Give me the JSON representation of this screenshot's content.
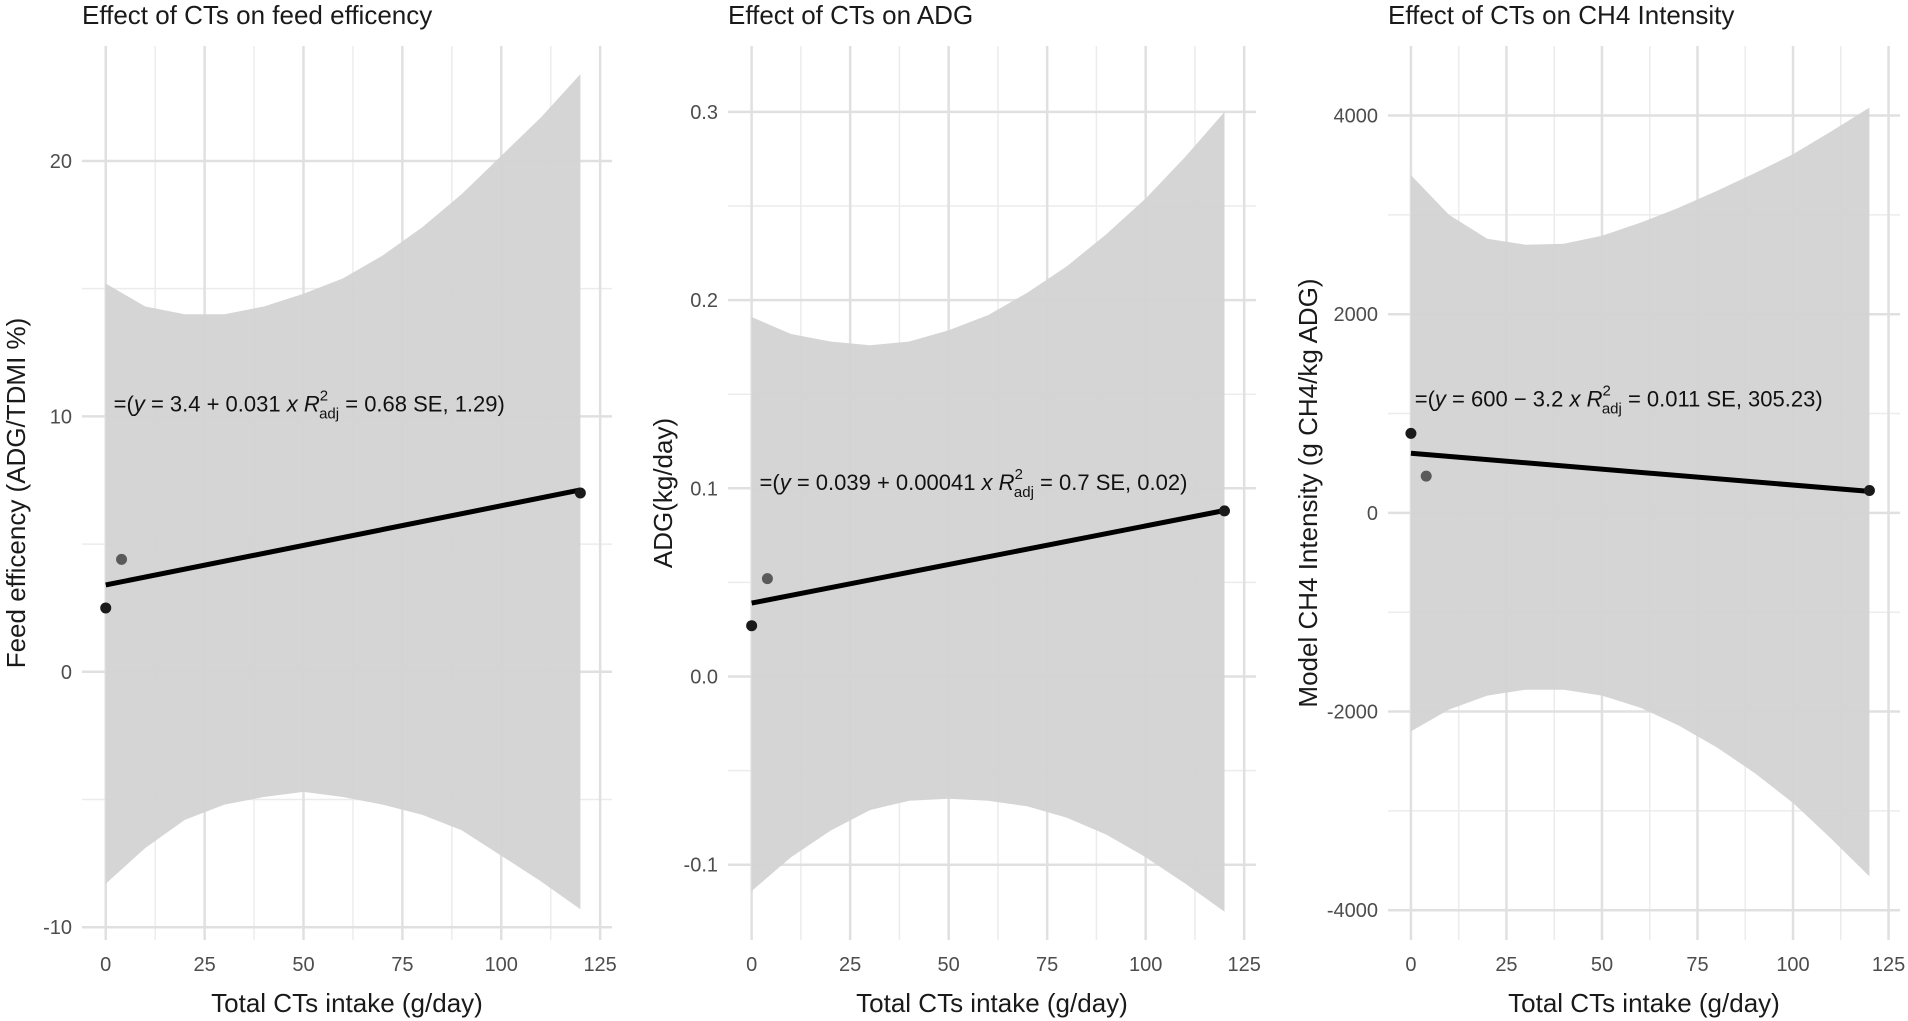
{
  "chart_data": [
    {
      "type": "scatter",
      "title": "Effect of CTs on feed efficency",
      "xlabel": "Total CTs intake (g/day)",
      "ylabel": "Feed efficency (ADG/TDMI %)",
      "xlim": [
        -6,
        128
      ],
      "ylim": [
        -10.5,
        24.5
      ],
      "x_ticks": [
        0,
        25,
        50,
        75,
        100,
        125
      ],
      "y_ticks": [
        -10,
        0,
        10,
        20
      ],
      "x_tick_labels": [
        "0",
        "25",
        "50",
        "75",
        "100",
        "125"
      ],
      "y_tick_labels": [
        "-10",
        "0",
        "10",
        "20"
      ],
      "points": [
        {
          "x": 0,
          "y": 2.5
        },
        {
          "x": 4,
          "y": 4.4
        },
        {
          "x": 120,
          "y": 7.0
        }
      ],
      "fit": {
        "intercept": 3.4,
        "slope": 0.031,
        "x_range": [
          0,
          120
        ]
      },
      "confidence_band": {
        "x": [
          0,
          10,
          20,
          30,
          40,
          50,
          60,
          70,
          80,
          90,
          100,
          110,
          120
        ],
        "upper": [
          15.2,
          14.3,
          14.0,
          14.0,
          14.3,
          14.8,
          15.4,
          16.3,
          17.4,
          18.7,
          20.2,
          21.7,
          23.4
        ],
        "lower": [
          -8.3,
          -6.9,
          -5.8,
          -5.2,
          -4.9,
          -4.7,
          -4.9,
          -5.2,
          -5.6,
          -6.2,
          -7.2,
          -8.2,
          -9.3
        ]
      },
      "equation": {
        "prefix": "=(",
        "y": "y",
        "body": " = 3.4 + 0.031 ",
        "x": "x",
        "R": "R",
        "sup": "2",
        "sub": "adj",
        "rest": " = 0.68  SE,   1.29)",
        "x_pos": 2,
        "y_pos": 10.2
      }
    },
    {
      "type": "scatter",
      "title": "Effect of CTs on ADG",
      "xlabel": "Total CTs intake (g/day)",
      "ylabel": "ADG(kg/day)",
      "xlim": [
        -6,
        128
      ],
      "ylim": [
        -0.14,
        0.335
      ],
      "x_ticks": [
        0,
        25,
        50,
        75,
        100,
        125
      ],
      "y_ticks": [
        -0.1,
        0.0,
        0.1,
        0.2,
        0.3
      ],
      "x_tick_labels": [
        "0",
        "25",
        "50",
        "75",
        "100",
        "125"
      ],
      "y_tick_labels": [
        "-0.1",
        "0.0",
        "0.1",
        "0.2",
        "0.3"
      ],
      "points": [
        {
          "x": 0,
          "y": 0.027
        },
        {
          "x": 4,
          "y": 0.052
        },
        {
          "x": 120,
          "y": 0.088
        }
      ],
      "fit": {
        "intercept": 0.039,
        "slope": 0.00041,
        "x_range": [
          0,
          120
        ]
      },
      "confidence_band": {
        "x": [
          0,
          10,
          20,
          30,
          40,
          50,
          60,
          70,
          80,
          90,
          100,
          110,
          120
        ],
        "upper": [
          0.191,
          0.182,
          0.178,
          0.176,
          0.178,
          0.184,
          0.192,
          0.204,
          0.218,
          0.235,
          0.254,
          0.276,
          0.3
        ],
        "lower": [
          -0.114,
          -0.096,
          -0.082,
          -0.071,
          -0.066,
          -0.065,
          -0.066,
          -0.069,
          -0.075,
          -0.084,
          -0.096,
          -0.11,
          -0.125
        ]
      },
      "equation": {
        "prefix": "=(",
        "y": "y",
        "body": " = 0.039 + 0.00041 ",
        "x": "x",
        "R": "R",
        "sup": "2",
        "sub": "adj",
        "rest": " = 0.7 SE,  0.02)",
        "x_pos": 2,
        "y_pos": 0.099
      }
    },
    {
      "type": "scatter",
      "title": "Effect of CTs on CH4 Intensity",
      "xlabel": "Total CTs intake (g/day)",
      "ylabel": "Model CH4 Intensity (g CH4/kg ADG)",
      "xlim": [
        -6,
        128
      ],
      "ylim": [
        -4300,
        4700
      ],
      "x_ticks": [
        0,
        25,
        50,
        75,
        100,
        125
      ],
      "y_ticks": [
        -4000,
        -2000,
        0,
        2000,
        4000
      ],
      "x_tick_labels": [
        "0",
        "25",
        "50",
        "75",
        "100",
        "125"
      ],
      "y_tick_labels": [
        "-4000",
        "-2000",
        "0",
        "2000",
        "4000"
      ],
      "points": [
        {
          "x": 0,
          "y": 800
        },
        {
          "x": 4,
          "y": 370
        },
        {
          "x": 120,
          "y": 225
        }
      ],
      "fit": {
        "intercept": 600,
        "slope": -3.2,
        "x_range": [
          0,
          120
        ]
      },
      "confidence_band": {
        "x": [
          0,
          10,
          20,
          30,
          40,
          50,
          60,
          70,
          80,
          90,
          100,
          110,
          120
        ],
        "upper": [
          3400,
          3000,
          2760,
          2700,
          2710,
          2790,
          2920,
          3070,
          3240,
          3420,
          3610,
          3840,
          4080
        ],
        "lower": [
          -2200,
          -1980,
          -1840,
          -1780,
          -1780,
          -1840,
          -1960,
          -2140,
          -2360,
          -2620,
          -2920,
          -3280,
          -3660
        ]
      },
      "equation": {
        "prefix": "=(",
        "y": "y",
        "body": " = 600 − 3.2 ",
        "x": "x",
        "R": "R",
        "sup": "2",
        "sub": "adj",
        "rest": " = 0.011 SE,  305.23)",
        "x_pos": 1,
        "y_pos": 1070
      }
    }
  ],
  "colors": {
    "band": "#d3d3d3",
    "grid": "#e0e0e0",
    "line": "#000000",
    "point_main": "#1a1a1a",
    "point_secondary": "#5a5a5a"
  }
}
